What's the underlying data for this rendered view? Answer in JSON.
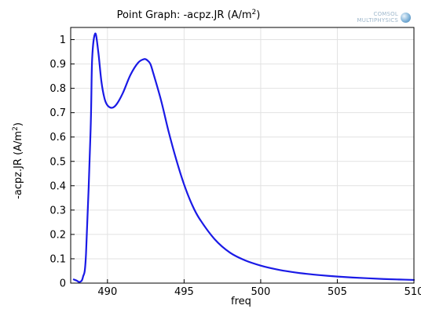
{
  "chart_data": {
    "type": "line",
    "title_main": "Point Graph: -acpz.JR (A/m",
    "title_sup": "2",
    "title_close": ")",
    "xlabel": "freq",
    "ylabel_main": "-acpz.JR (A/m",
    "ylabel_sup": "2",
    "ylabel_close": ")",
    "xlim": [
      487.6,
      510
    ],
    "ylim": [
      0,
      1.05
    ],
    "x_ticks": [
      490,
      495,
      500,
      505,
      510
    ],
    "y_ticks": [
      0,
      0.1,
      0.2,
      0.3,
      0.4,
      0.5,
      0.6,
      0.7,
      0.8,
      0.9,
      1
    ],
    "x_tick_labels": [
      "490",
      "495",
      "500",
      "505",
      "510"
    ],
    "y_tick_labels": [
      "0",
      "0.1",
      "0.2",
      "0.3",
      "0.4",
      "0.5",
      "0.6",
      "0.7",
      "0.8",
      "0.9",
      "1"
    ],
    "grid": true,
    "series_color": "#1a1ae6",
    "x": [
      487.8,
      488.0,
      488.2,
      488.4,
      488.6,
      488.9,
      489.0,
      489.2,
      489.4,
      489.6,
      489.8,
      490.0,
      490.3,
      490.6,
      491.0,
      491.5,
      492.0,
      492.4,
      492.6,
      492.8,
      493.0,
      493.5,
      494.0,
      494.5,
      495.0,
      495.5,
      496.0,
      497.0,
      498.0,
      499.0,
      500.0,
      501.0,
      502.0,
      503.0,
      504.0,
      505.0,
      506.0,
      507.0,
      508.0,
      509.0,
      510.0
    ],
    "y": [
      0.015,
      0.01,
      0.005,
      0.025,
      0.12,
      0.63,
      0.92,
      1.025,
      0.95,
      0.83,
      0.76,
      0.73,
      0.72,
      0.735,
      0.78,
      0.855,
      0.905,
      0.92,
      0.915,
      0.9,
      0.86,
      0.75,
      0.62,
      0.505,
      0.405,
      0.325,
      0.265,
      0.18,
      0.125,
      0.093,
      0.072,
      0.057,
      0.046,
      0.038,
      0.032,
      0.027,
      0.023,
      0.02,
      0.017,
      0.015,
      0.013
    ]
  },
  "logo": {
    "line1": "COMSOL",
    "line2": "MULTIPHYSICS"
  }
}
